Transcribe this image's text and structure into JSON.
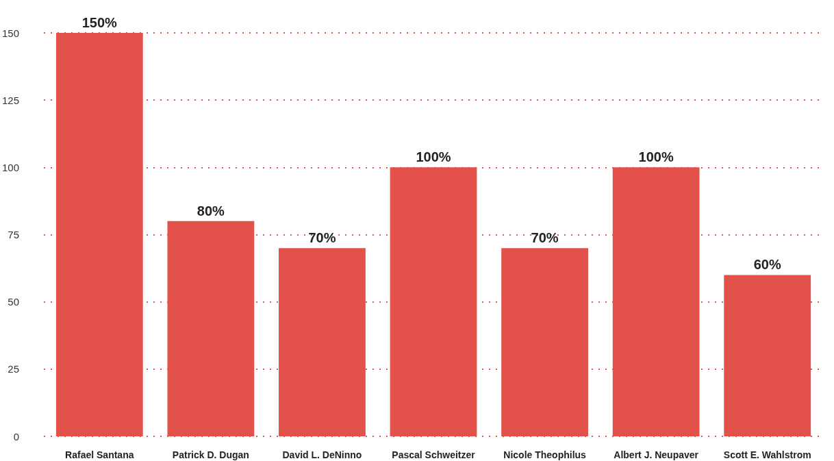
{
  "chart_data": {
    "type": "bar",
    "categories": [
      "Rafael Santana",
      "Patrick D. Dugan",
      "David L. DeNinno",
      "Pascal Schweitzer",
      "Nicole Theophilus",
      "Albert J. Neupaver",
      "Scott E. Wahlstrom"
    ],
    "values": [
      150,
      80,
      70,
      100,
      70,
      100,
      60
    ],
    "value_labels": [
      "150%",
      "80%",
      "70%",
      "100%",
      "70%",
      "100%",
      "60%"
    ],
    "color": "#e3524a",
    "ylim": [
      0,
      150
    ],
    "yticks": [
      0,
      25,
      50,
      75,
      100,
      125,
      150
    ],
    "grid": "y"
  }
}
